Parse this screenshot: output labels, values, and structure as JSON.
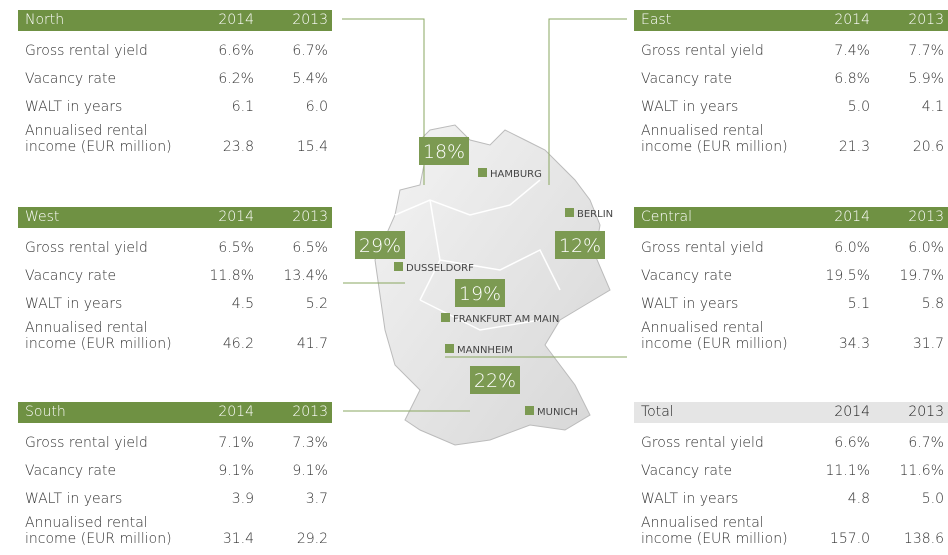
{
  "regions": [
    {
      "name": "North",
      "headers": [
        "2014",
        "2013"
      ],
      "rows": [
        {
          "label": "Gross rental yield",
          "values": [
            "6.6%",
            "6.7%"
          ]
        },
        {
          "label": "Vacancy rate",
          "values": [
            "6.2%",
            "5.4%"
          ]
        },
        {
          "label": "WALT in years",
          "values": [
            "6.1",
            "6.0"
          ]
        },
        {
          "label": "Annualised rental income (EUR million)",
          "values": [
            "23.8",
            "15.4"
          ]
        }
      ]
    },
    {
      "name": "West",
      "headers": [
        "2014",
        "2013"
      ],
      "rows": [
        {
          "label": "Gross rental yield",
          "values": [
            "6.5%",
            "6.5%"
          ]
        },
        {
          "label": "Vacancy rate",
          "values": [
            "11.8%",
            "13.4%"
          ]
        },
        {
          "label": "WALT in years",
          "values": [
            "4.5",
            "5.2"
          ]
        },
        {
          "label": "Annualised rental income (EUR million)",
          "values": [
            "46.2",
            "41.7"
          ]
        }
      ]
    },
    {
      "name": "South",
      "headers": [
        "2014",
        "2013"
      ],
      "rows": [
        {
          "label": "Gross rental yield",
          "values": [
            "7.1%",
            "7.3%"
          ]
        },
        {
          "label": "Vacancy rate",
          "values": [
            "9.1%",
            "9.1%"
          ]
        },
        {
          "label": "WALT in years",
          "values": [
            "3.9",
            "3.7"
          ]
        },
        {
          "label": "Annualised rental income (EUR million)",
          "values": [
            "31.4",
            "29.2"
          ]
        }
      ]
    },
    {
      "name": "East",
      "headers": [
        "2014",
        "2013"
      ],
      "rows": [
        {
          "label": "Gross rental yield",
          "values": [
            "7.4%",
            "7.7%"
          ]
        },
        {
          "label": "Vacancy rate",
          "values": [
            "6.8%",
            "5.9%"
          ]
        },
        {
          "label": "WALT in years",
          "values": [
            "5.0",
            "4.1"
          ]
        },
        {
          "label": "Annualised rental income (EUR million)",
          "values": [
            "21.3",
            "20.6"
          ]
        }
      ]
    },
    {
      "name": "Central",
      "headers": [
        "2014",
        "2013"
      ],
      "rows": [
        {
          "label": "Gross rental yield",
          "values": [
            "6.0%",
            "6.0%"
          ]
        },
        {
          "label": "Vacancy rate",
          "values": [
            "19.5%",
            "19.7%"
          ]
        },
        {
          "label": "WALT in years",
          "values": [
            "5.1",
            "5.8"
          ]
        },
        {
          "label": "Annualised rental income (EUR million)",
          "values": [
            "34.3",
            "31.7"
          ]
        }
      ]
    },
    {
      "name": "Total",
      "headers": [
        "2014",
        "2013"
      ],
      "rows": [
        {
          "label": "Gross rental yield",
          "values": [
            "6.6%",
            "6.7%"
          ]
        },
        {
          "label": "Vacancy rate",
          "values": [
            "11.1%",
            "11.6%"
          ]
        },
        {
          "label": "WALT in years",
          "values": [
            "4.8",
            "5.0"
          ]
        },
        {
          "label": "Annualised rental income (EUR million)",
          "values": [
            "157.0",
            "138.6"
          ]
        }
      ]
    }
  ],
  "map": {
    "shares": [
      "18%",
      "29%",
      "12%",
      "19%",
      "22%"
    ],
    "cities": [
      "HAMBURG",
      "BERLIN",
      "DUSSELDORF",
      "FRANKFURT AM MAIN",
      "MANNHEIM",
      "MUNICH"
    ]
  }
}
